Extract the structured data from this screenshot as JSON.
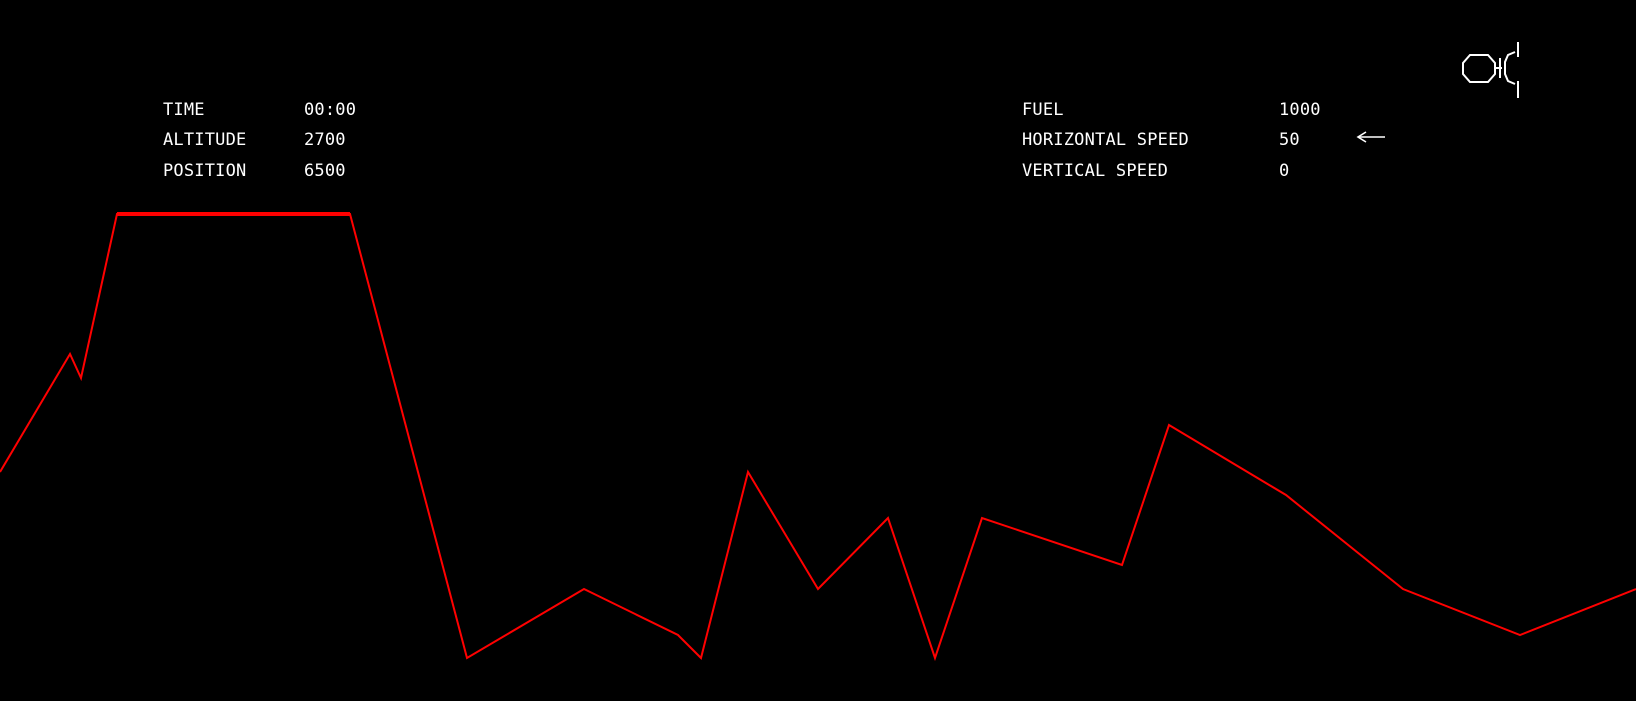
{
  "hud": {
    "left": {
      "time_label": "TIME",
      "time_value": "00:00",
      "altitude_label": "ALTITUDE",
      "altitude_value": "2700",
      "position_label": "POSITION",
      "position_value": "6500"
    },
    "right": {
      "fuel_label": "FUEL",
      "fuel_value": "1000",
      "horizontal_speed_label": "HORIZONTAL SPEED",
      "horizontal_speed_value": "50",
      "vertical_speed_label": "VERTICAL SPEED",
      "vertical_speed_value": "0"
    },
    "direction_icon": "left-arrow-icon"
  },
  "lander_icon": "lunar-lander-icon",
  "colors": {
    "background": "#000000",
    "text": "#ffffff",
    "terrain": "#ff0000",
    "lander": "#ffffff"
  }
}
